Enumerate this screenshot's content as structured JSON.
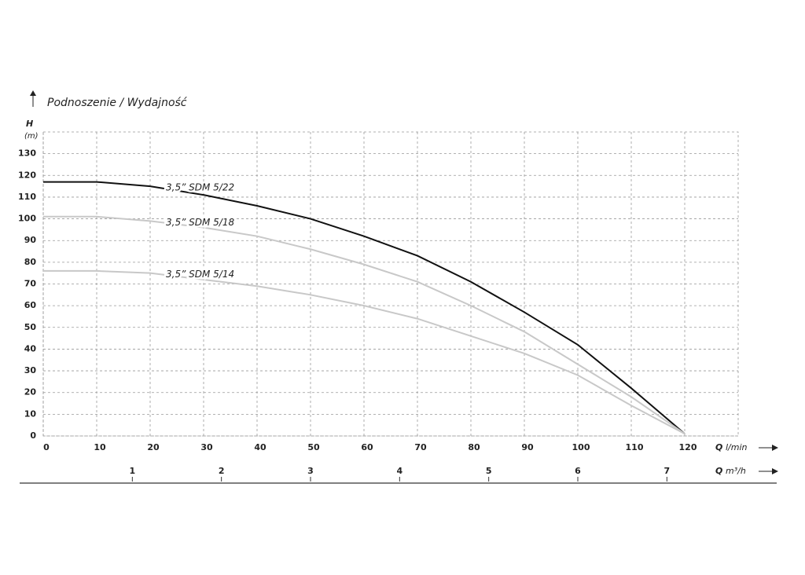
{
  "chart_data": {
    "type": "line",
    "title": "Podnoszenie / Wydajność",
    "y_label": {
      "symbol": "H",
      "unit": "(m)"
    },
    "x_label": {
      "symbol": "Q",
      "unit": "l/min"
    },
    "x2_label": {
      "symbol": "Q",
      "unit": "m³/h"
    },
    "x": [
      0,
      10,
      20,
      30,
      40,
      50,
      60,
      70,
      80,
      90,
      100,
      110,
      120
    ],
    "series": [
      {
        "name": "3,5” SDM 5/22",
        "color": "#111111",
        "values": [
          117,
          117,
          115,
          111,
          106,
          100,
          92,
          83,
          71,
          57,
          42,
          22,
          1
        ]
      },
      {
        "name": "3,5” SDM 5/18",
        "color": "#c8c8c8",
        "values": [
          101,
          101,
          99,
          96,
          92,
          86,
          79,
          71,
          60,
          48,
          33,
          18,
          1
        ]
      },
      {
        "name": "3,5” SDM 5/14",
        "color": "#c8c8c8",
        "values": [
          76,
          76,
          75,
          72,
          69,
          65,
          60,
          54,
          46,
          38,
          28,
          14,
          1
        ]
      }
    ],
    "xlim": [
      0,
      130
    ],
    "xticks": [
      0,
      10,
      20,
      30,
      40,
      50,
      60,
      70,
      80,
      90,
      100,
      110,
      120
    ],
    "x2lim": [
      0,
      7.8
    ],
    "x2ticks": [
      1,
      2,
      3,
      4,
      5,
      6,
      7
    ],
    "ylim": [
      0,
      140
    ],
    "yticks": [
      0,
      10,
      20,
      30,
      40,
      50,
      60,
      70,
      80,
      90,
      100,
      110,
      120,
      130
    ],
    "grid": true
  }
}
